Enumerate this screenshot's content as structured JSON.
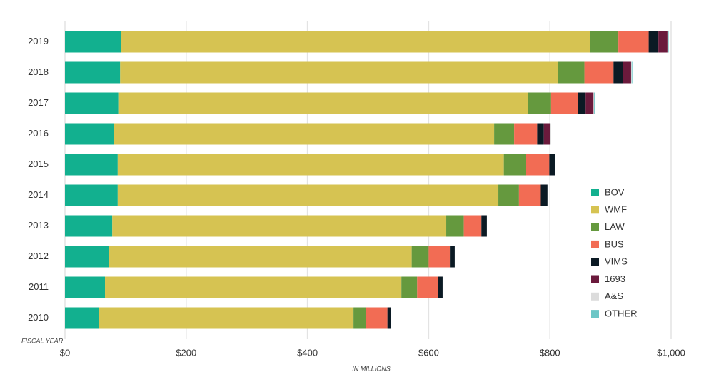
{
  "chart_data": {
    "type": "bar",
    "orientation": "horizontal",
    "stacked": true,
    "y_label": "FISCAL YEAR",
    "x_label": "IN MILLIONS",
    "categories": [
      "2019",
      "2018",
      "2017",
      "2016",
      "2015",
      "2014",
      "2013",
      "2012",
      "2011",
      "2010"
    ],
    "series": [
      {
        "name": "BOV",
        "color": "#12b08f",
        "values": [
          93,
          91,
          88,
          81,
          87,
          87,
          78,
          72,
          66,
          56
        ]
      },
      {
        "name": "WMF",
        "color": "#d6c352",
        "values": [
          773,
          722,
          676,
          627,
          637,
          628,
          551,
          500,
          489,
          420
        ]
      },
      {
        "name": "LAW",
        "color": "#65993e",
        "values": [
          47,
          44,
          38,
          33,
          36,
          34,
          29,
          28,
          26,
          21
        ]
      },
      {
        "name": "BUS",
        "color": "#f26c54",
        "values": [
          50,
          48,
          44,
          38,
          39,
          36,
          29,
          35,
          35,
          35
        ]
      },
      {
        "name": "VIMS",
        "color": "#0b1a24",
        "values": [
          16,
          15,
          13,
          11,
          9,
          11,
          9,
          8,
          7,
          6
        ]
      },
      {
        "name": "1693",
        "color": "#6b1a3c",
        "values": [
          15,
          14,
          13,
          11,
          0,
          0,
          0,
          0,
          0,
          0
        ]
      },
      {
        "name": "A&S",
        "color": "#dcdcdc",
        "values": [
          1,
          1,
          1,
          1,
          0,
          0,
          0,
          0,
          0,
          0
        ]
      },
      {
        "name": "OTHER",
        "color": "#6cc6c6",
        "values": [
          1,
          1,
          1,
          0,
          1,
          0,
          0,
          0,
          0,
          0
        ]
      }
    ],
    "xlim": [
      0,
      1000
    ],
    "xticks": [
      {
        "value": 0,
        "label": "$0"
      },
      {
        "value": 200,
        "label": "$200"
      },
      {
        "value": 400,
        "label": "$400"
      },
      {
        "value": 600,
        "label": "$600"
      },
      {
        "value": 800,
        "label": "$800"
      },
      {
        "value": 1000,
        "label": "$1,000"
      }
    ],
    "grid": true,
    "legend": "right"
  }
}
